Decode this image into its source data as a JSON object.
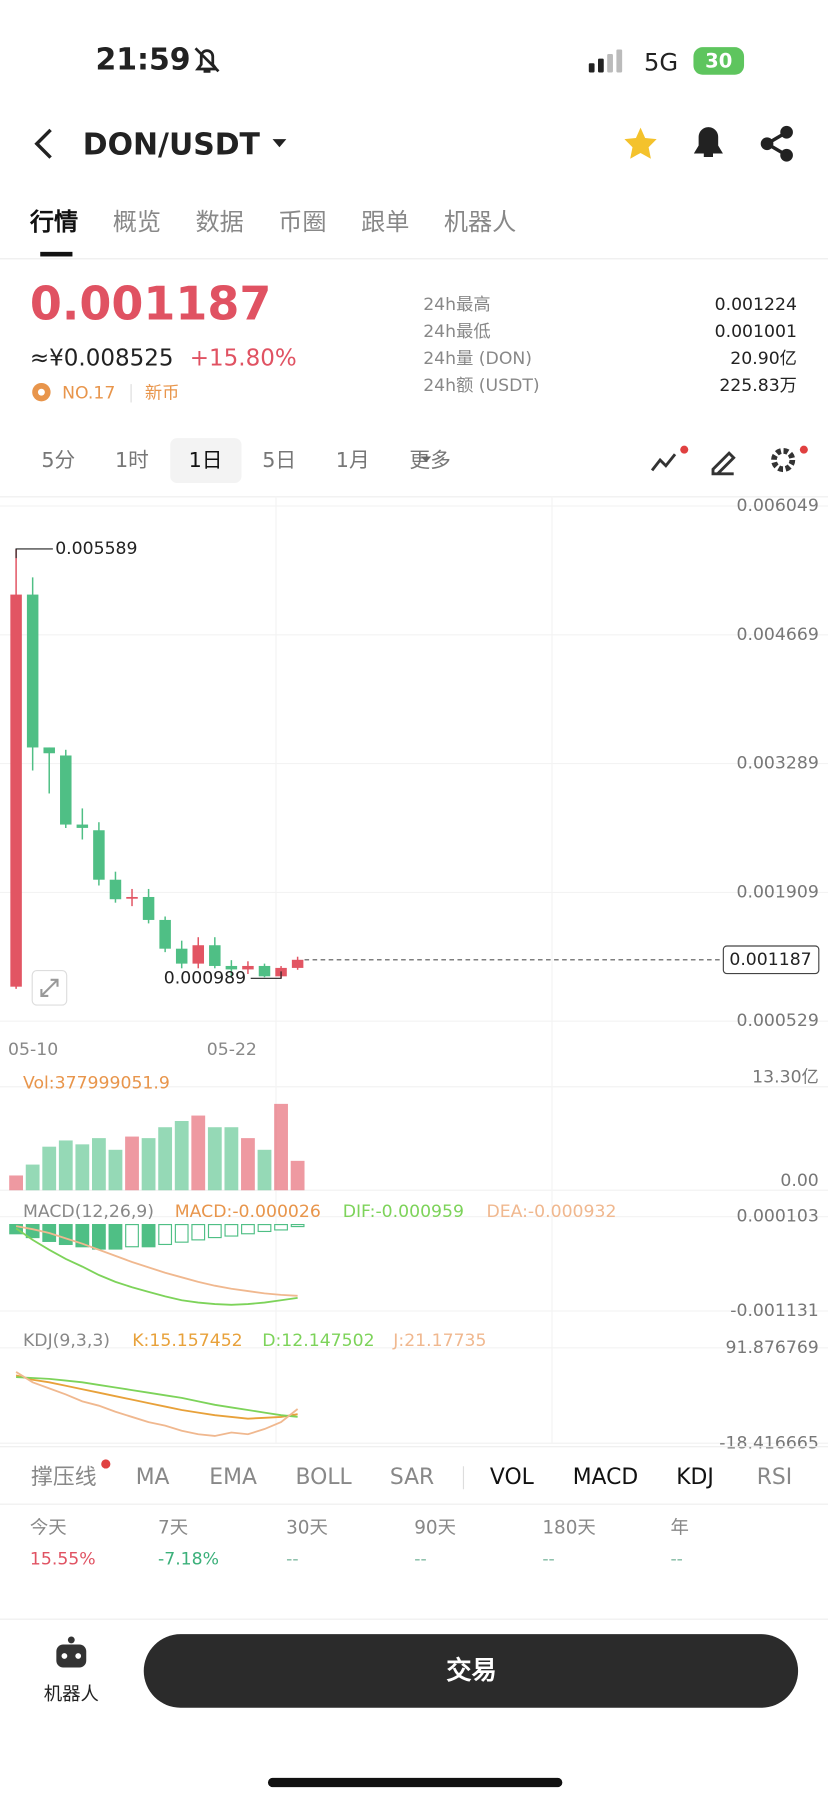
{
  "status_bar": {
    "time": "21:59",
    "network": "5G",
    "battery": "30"
  },
  "header": {
    "pair": "DON/USDT"
  },
  "tabs": [
    "行情",
    "概览",
    "数据",
    "币圈",
    "跟单",
    "机器人"
  ],
  "price": {
    "last": "0.001187",
    "cny": "≈¥0.008525",
    "change": "+15.80%",
    "rank": "NO.17",
    "tag": "新币"
  },
  "stats": [
    {
      "label": "24h最高",
      "value": "0.001224"
    },
    {
      "label": "24h最低",
      "value": "0.001001"
    },
    {
      "label": "24h量 (DON)",
      "value": "20.90亿"
    },
    {
      "label": "24h额 (USDT)",
      "value": "225.83万"
    }
  ],
  "intervals": [
    "5分",
    "1时",
    "1日",
    "5日",
    "1月",
    "更多"
  ],
  "chart": {
    "type": "candlestick",
    "dates": [
      "05-10",
      null,
      null,
      null,
      null,
      null,
      null,
      null,
      null,
      null,
      null,
      null,
      "05-22",
      null,
      null,
      null,
      null,
      null
    ],
    "open": [
      0.000899,
      0.0051,
      0.003462,
      0.003376,
      0.002636,
      0.002575,
      0.002045,
      0.001848,
      0.00186,
      0.001614,
      0.001306,
      0.001146,
      0.001343,
      0.001121,
      0.001084,
      0.001121,
      0.00101,
      0.0011
    ],
    "high": [
      0.005589,
      0.005285,
      0.003462,
      0.003437,
      0.002809,
      0.002661,
      0.002131,
      0.001946,
      0.001946,
      0.001651,
      0.001392,
      0.001429,
      0.001429,
      0.001183,
      0.001171,
      0.001146,
      0.00112,
      0.00122
    ],
    "low": [
      0.000875,
      0.003215,
      0.002969,
      0.002599,
      0.002476,
      0.001983,
      0.001799,
      0.001762,
      0.001577,
      0.001269,
      0.001096,
      0.001096,
      0.001096,
      0.000998,
      0.001035,
      0.001,
      0.000989,
      0.00108
    ],
    "close": [
      0.0051,
      0.003462,
      0.0034,
      0.002636,
      0.0026,
      0.002045,
      0.001836,
      0.00186,
      0.001614,
      0.001306,
      0.001146,
      0.001343,
      0.001121,
      0.001084,
      0.001121,
      0.00101,
      0.0011,
      0.001187
    ],
    "ylim": [
      0.000529,
      0.006049
    ],
    "yticks": [
      0.006049,
      0.004669,
      0.003289,
      0.001909,
      0.000529
    ],
    "up_color": "#e25563",
    "down_color": "#4fbf85",
    "volume_label": "Vol:377999051.9",
    "volume": [
      1.9,
      3.3,
      5.6,
      6.4,
      5.9,
      6.7,
      5.2,
      6.9,
      6.7,
      8.1,
      8.9,
      9.6,
      8.1,
      8.1,
      6.7,
      5.2,
      11.1,
      3.78
    ],
    "vlim": [
      0,
      13.3
    ],
    "vticks": [
      {
        "value": 13.3,
        "label": "13.30亿"
      },
      {
        "value": 0,
        "label": "0.00"
      }
    ],
    "macd_label": "MACD(12,26,9)",
    "macd_value": "MACD:-0.000026",
    "dif_value": "DIF:-0.000959",
    "dea_value": "DEA:-0.000932",
    "macd": [
      -0.00012,
      -0.00017,
      -0.00022,
      -0.00026,
      -0.00029,
      -0.00032,
      -0.00032,
      -0.00029,
      -0.00029,
      -0.00026,
      -0.00023,
      -0.0002,
      -0.00017,
      -0.00015,
      -0.00012,
      -9e-05,
      -7e-05,
      -2.6e-05
    ],
    "dif": [
      -5e-05,
      -0.0002,
      -0.00033,
      -0.00045,
      -0.00055,
      -0.00066,
      -0.00075,
      -0.00082,
      -0.00088,
      -0.00094,
      -0.00099,
      -0.00102,
      -0.00104,
      -0.00105,
      -0.00104,
      -0.00102,
      -0.00099,
      -0.000959
    ],
    "dea": [
      -2e-05,
      -6e-05,
      -0.00011,
      -0.00018,
      -0.00025,
      -0.00033,
      -0.00041,
      -0.00049,
      -0.00056,
      -0.00063,
      -0.00069,
      -0.00075,
      -0.0008,
      -0.00084,
      -0.00087,
      -0.0009,
      -0.00092,
      -0.000932
    ],
    "mlim": [
      -0.001131,
      0.000103
    ],
    "mticks": [
      0.000103,
      -0.001131
    ],
    "dif_color": "#7dd35a",
    "dea_color": "#f0b88f",
    "kdj_label": "KDJ(9,3,3)",
    "k_value": "K:15.157452",
    "d_value": "D:12.147502",
    "j_value": "J:21.17735",
    "k": [
      60,
      55,
      52,
      48,
      44,
      40,
      36,
      32,
      28,
      24,
      20,
      17,
      14,
      12,
      10,
      11,
      12,
      15.157452
    ],
    "d": [
      58,
      57,
      56,
      54,
      52,
      49,
      46,
      43,
      40,
      37,
      34,
      30,
      26,
      23,
      20,
      17,
      14,
      12.147502
    ],
    "j": [
      64,
      52,
      45,
      38,
      30,
      25,
      18,
      12,
      6,
      2,
      -4,
      -8,
      -10,
      -6,
      -8,
      -2,
      6,
      21.17735
    ],
    "klim": [
      -18.416665,
      91.876769
    ],
    "kticks": [
      91.876769,
      -18.416665
    ],
    "k_color": "#e8a13a",
    "d_color": "#7dd35a",
    "j_color": "#f0b88f"
  },
  "indicators": [
    "撑压线",
    "MA",
    "EMA",
    "BOLL",
    "SAR",
    "VOL",
    "MACD",
    "KDJ",
    "RSI"
  ],
  "performance": [
    {
      "label": "今天",
      "value": "15.55%"
    },
    {
      "label": "7天",
      "value": "-7.18%"
    },
    {
      "label": "30天",
      "value": "--"
    },
    {
      "label": "90天",
      "value": "--"
    },
    {
      "label": "180天",
      "value": "--"
    },
    {
      "label": "年",
      "value": "--"
    }
  ],
  "bottom": {
    "robot": "机器人",
    "trade": "交易"
  }
}
